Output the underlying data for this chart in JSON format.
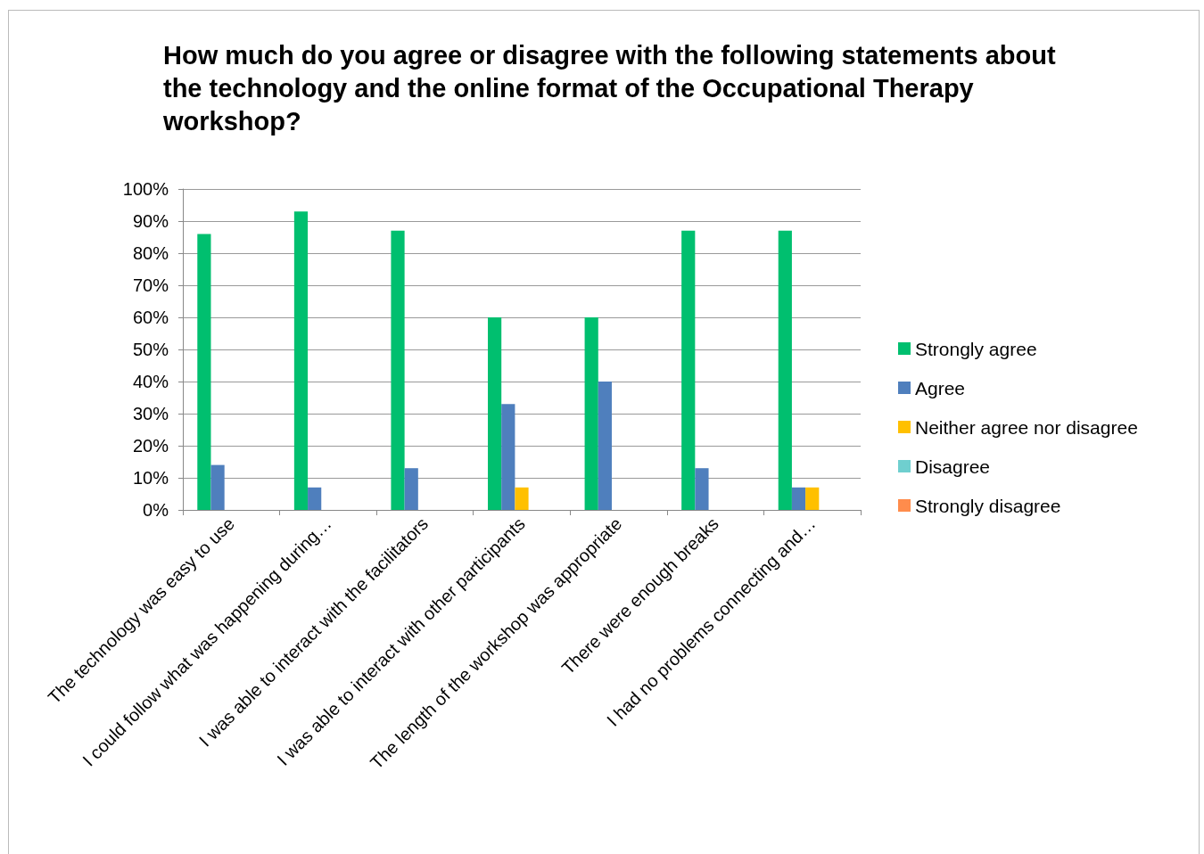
{
  "chart_data": {
    "type": "bar",
    "title": "How much do you agree or disagree with the following statements about the technology and the online format of the Occupational Therapy workshop?",
    "categories": [
      "The technology was easy to use",
      "I could follow what was happening during…",
      "I was able to interact with the facilitators",
      "I was able to interact with other participants",
      "The length of the workshop was appropriate",
      "There were enough breaks",
      "I had no problems connecting and…"
    ],
    "series": [
      {
        "name": "Strongly agree",
        "color": "#00bf6f",
        "values": [
          86,
          93,
          87,
          60,
          60,
          87,
          87
        ]
      },
      {
        "name": "Agree",
        "color": "#4f7fbd",
        "values": [
          14,
          7,
          13,
          33,
          40,
          13,
          7
        ]
      },
      {
        "name": "Neither agree nor disagree",
        "color": "#ffc000",
        "values": [
          0,
          0,
          0,
          7,
          0,
          0,
          7
        ]
      },
      {
        "name": "Disagree",
        "color": "#6fcfcf",
        "values": [
          0,
          0,
          0,
          0,
          0,
          0,
          0
        ]
      },
      {
        "name": "Strongly disagree",
        "color": "#ff8c4c",
        "values": [
          0,
          0,
          0,
          0,
          0,
          0,
          0
        ]
      }
    ],
    "ylim": [
      0,
      100
    ],
    "yticks": [
      {
        "value": 0,
        "label": "0%"
      },
      {
        "value": 10,
        "label": "10%"
      },
      {
        "value": 20,
        "label": "20%"
      },
      {
        "value": 30,
        "label": "30%"
      },
      {
        "value": 40,
        "label": "40%"
      },
      {
        "value": 50,
        "label": "50%"
      },
      {
        "value": 60,
        "label": "60%"
      },
      {
        "value": 70,
        "label": "70%"
      },
      {
        "value": 80,
        "label": "80%"
      },
      {
        "value": 90,
        "label": "90%"
      },
      {
        "value": 100,
        "label": "100%"
      }
    ],
    "grid": "y",
    "legend": "right"
  }
}
